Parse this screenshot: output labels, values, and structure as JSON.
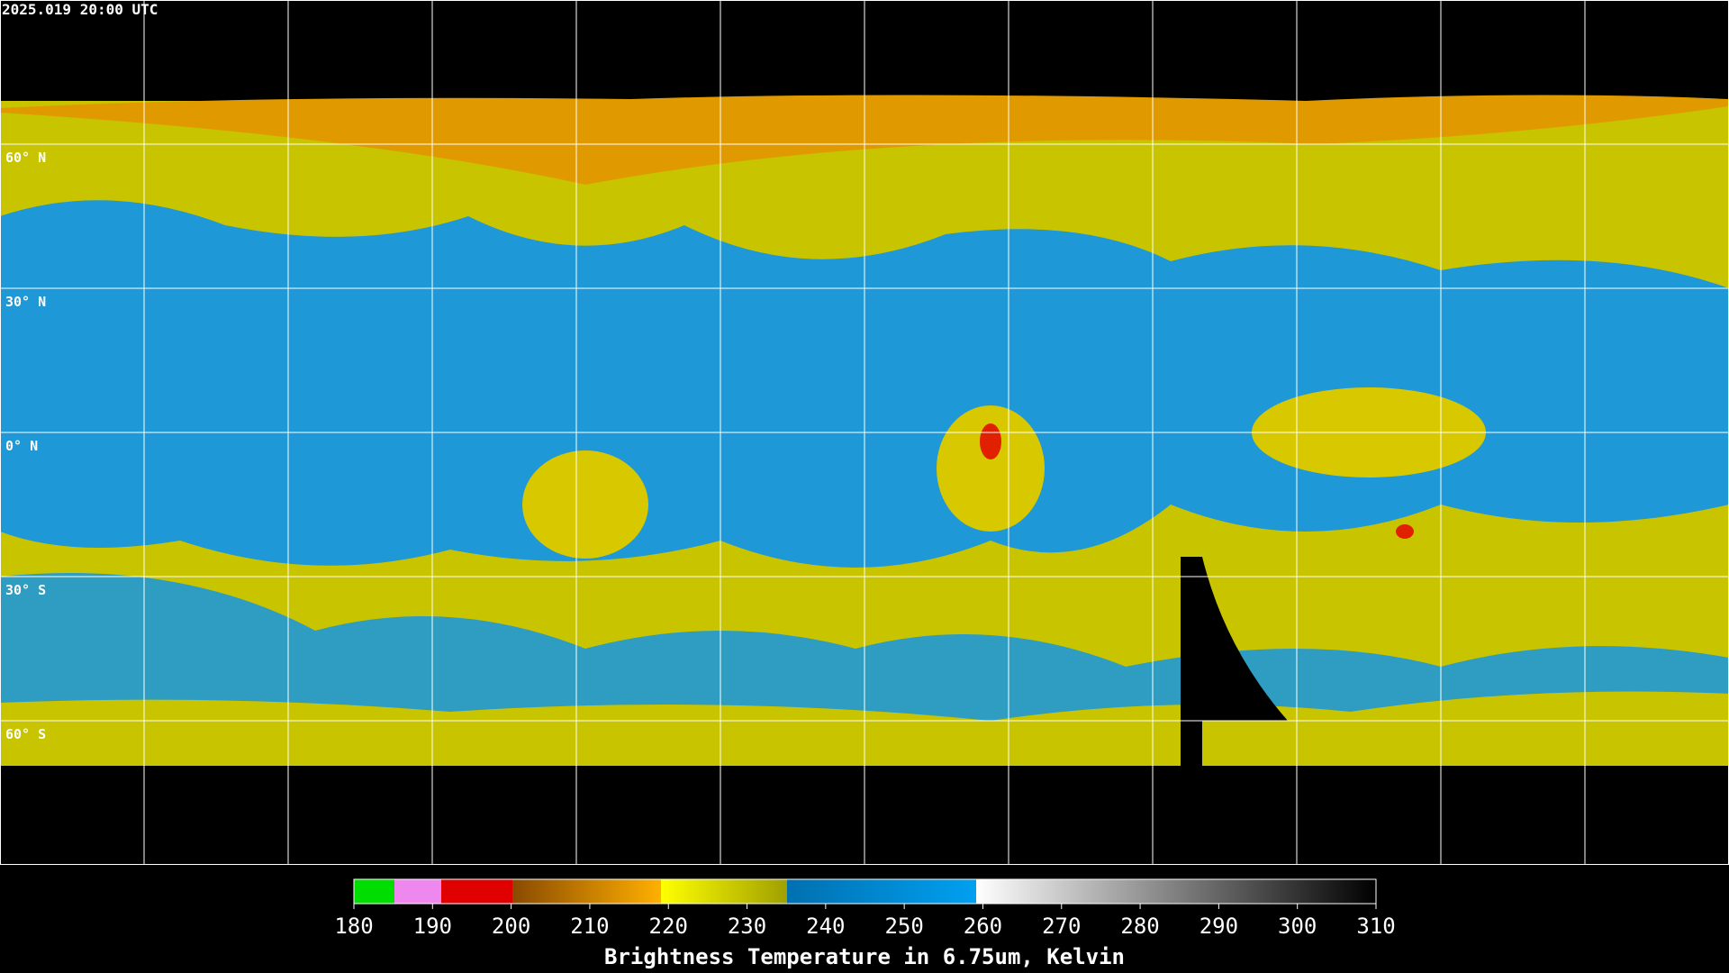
{
  "header": {
    "timestamp": "2025.019 20:00 UTC"
  },
  "map": {
    "lat_labels": [
      {
        "value": 60,
        "label": "60° N"
      },
      {
        "value": 30,
        "label": "30° N"
      },
      {
        "value": 0,
        "label": "0° N"
      },
      {
        "value": -30,
        "label": "30° S"
      },
      {
        "value": -60,
        "label": "60° S"
      }
    ]
  },
  "colorbar": {
    "title": "Brightness Temperature in 6.75um, Kelvin",
    "range": [
      180,
      310
    ],
    "ticks": [
      180,
      190,
      200,
      210,
      220,
      230,
      240,
      250,
      260,
      270,
      280,
      290,
      300,
      310
    ]
  }
}
